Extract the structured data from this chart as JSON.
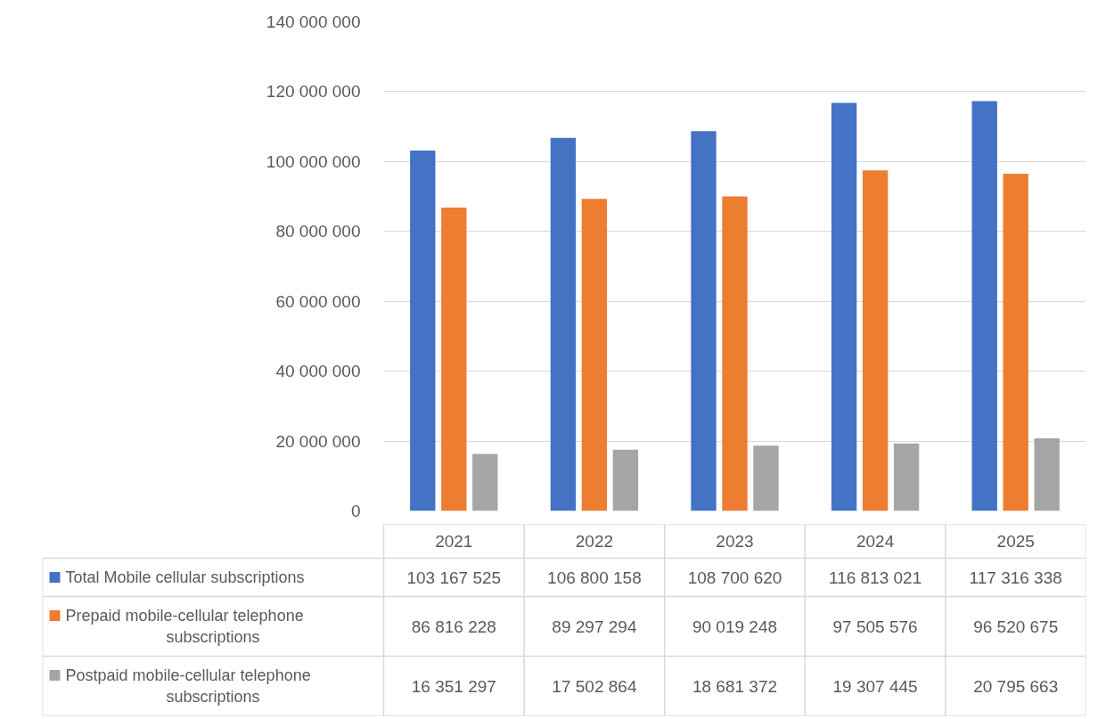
{
  "chart_data": {
    "type": "bar",
    "categories": [
      "2021",
      "2022",
      "2023",
      "2024",
      "2025"
    ],
    "series": [
      {
        "name": "Total Mobile cellular subscriptions",
        "color": "#4472c4",
        "values": [
          103167525,
          106800158,
          108700620,
          116813021,
          117316338
        ],
        "value_labels": [
          "103 167 525",
          "106 800 158",
          "108 700 620",
          "116 813 021",
          "117 316 338"
        ]
      },
      {
        "name": "Prepaid mobile-cellular telephone subscriptions",
        "color": "#ed7d31",
        "values": [
          86816228,
          89297294,
          90019248,
          97505576,
          96520675
        ],
        "value_labels": [
          "86 816 228",
          "89 297 294",
          "90 019 248",
          "97 505 576",
          "96 520 675"
        ]
      },
      {
        "name": "Postpaid mobile-cellular telephone subscriptions",
        "color": "#a5a5a5",
        "values": [
          16351297,
          17502864,
          18681372,
          19307445,
          20795663
        ],
        "value_labels": [
          "16 351 297",
          "17 502 864",
          "18 681 372",
          "19 307 445",
          "20 795 663"
        ]
      }
    ],
    "ylim": [
      0,
      140000000
    ],
    "yticks": [
      {
        "value": 0,
        "label": "0"
      },
      {
        "value": 20000000,
        "label": "20 000 000"
      },
      {
        "value": 40000000,
        "label": "40 000 000"
      },
      {
        "value": 60000000,
        "label": "60 000 000"
      },
      {
        "value": 80000000,
        "label": "80 000 000"
      },
      {
        "value": 100000000,
        "label": "100 000 000"
      },
      {
        "value": 120000000,
        "label": "120 000 000"
      },
      {
        "value": 140000000,
        "label": "140 000 000"
      }
    ],
    "grid": "y",
    "legend": "bottom"
  }
}
